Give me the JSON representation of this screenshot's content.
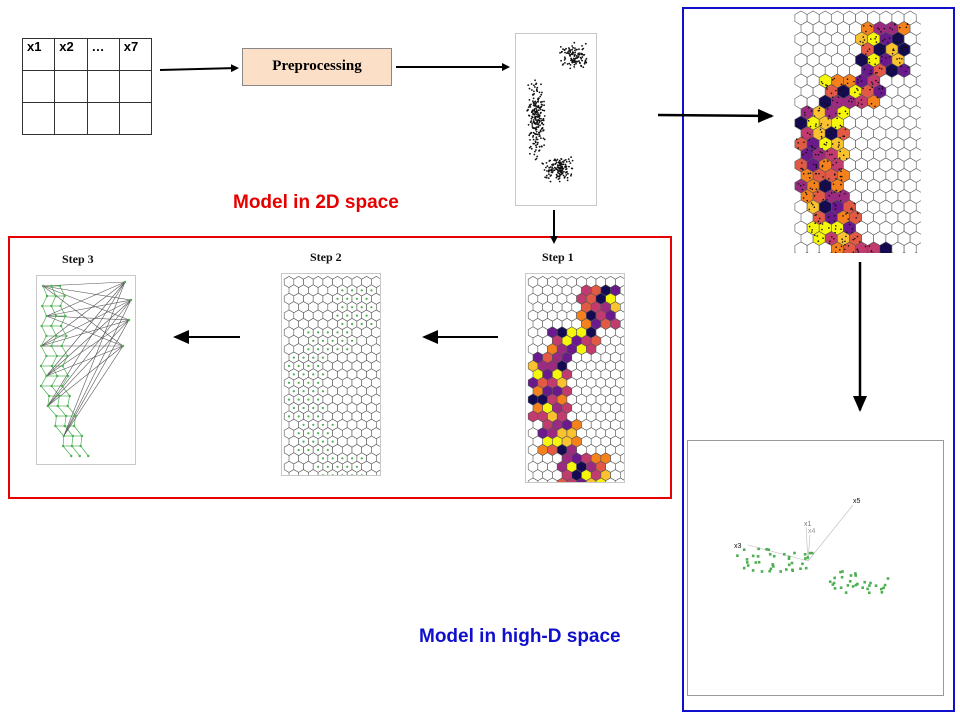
{
  "table": {
    "headers": [
      "x1",
      "x2",
      "…",
      "x7"
    ],
    "empty_rows": 2
  },
  "preprocessing_label": "Preprocessing",
  "captions": {
    "model_2d": "Model in 2D space",
    "model_highd": "Model in high-D space"
  },
  "steps": [
    "Step 3",
    "Step 2",
    "Step 1"
  ],
  "projection_axes": [
    "x5",
    "x1",
    "x4",
    "x3"
  ],
  "colors": {
    "red_frame": "#e60000",
    "blue_frame": "#1010cc",
    "preprocessing_fill": "#fbdfc6",
    "hex_green": "#4caf50",
    "hex_palette": [
      "#140b53",
      "#6a1a8c",
      "#9c2a80",
      "#c23b6e",
      "#e25a45",
      "#f4811c",
      "#f9c22e",
      "#f6f60a"
    ]
  }
}
